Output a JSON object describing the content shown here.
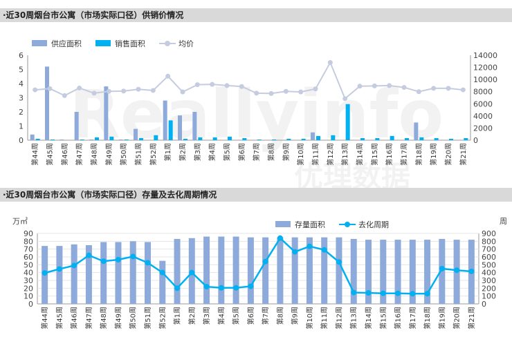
{
  "watermark": {
    "brand": "Reallyinfo",
    "cn": "优理数据"
  },
  "chart_data": [
    {
      "type": "bar",
      "title": "·近30周烟台市公寓（市场实际口径）供销价情况",
      "categories": [
        "第44周",
        "第45周",
        "第46周",
        "第47周",
        "第48周",
        "第49周",
        "第50周",
        "第51周",
        "第52周",
        "第1周",
        "第2周",
        "第3周",
        "第4周",
        "第5周",
        "第6周",
        "第7周",
        "第8周",
        "第9周",
        "第10周",
        "第11周",
        "第12周",
        "第13周",
        "第14周",
        "第15周",
        "第16周",
        "第17周",
        "第18周",
        "第19周",
        "第20周",
        "第21周"
      ],
      "ylim_left": [
        0,
        6
      ],
      "ylim_right": [
        0,
        14000
      ],
      "yticks_left": [
        "0",
        "1",
        "2",
        "3",
        "4",
        "5",
        "6"
      ],
      "yticks_right": [
        "0",
        "2000",
        "4000",
        "6000",
        "8000",
        "10000",
        "12000",
        "14000"
      ],
      "series": [
        {
          "name": "供应面积",
          "axis": "left",
          "kind": "bar",
          "color": "#8eaadb",
          "values": [
            0.4,
            5.2,
            0.05,
            2.0,
            0.05,
            3.8,
            0.05,
            0.8,
            0.0,
            2.8,
            1.75,
            2.0,
            0.0,
            0.0,
            0.0,
            0.0,
            0.0,
            0.0,
            0.0,
            0.55,
            0.0,
            0.0,
            0.0,
            0.0,
            0.0,
            0.0,
            1.25,
            0.0,
            0.0,
            0.0
          ]
        },
        {
          "name": "销售面积",
          "axis": "left",
          "kind": "bar",
          "color": "#00b0f0",
          "values": [
            0.1,
            0.05,
            0.0,
            0.05,
            0.2,
            0.25,
            0.05,
            0.15,
            0.35,
            1.4,
            0.1,
            0.2,
            0.2,
            0.25,
            0.15,
            0.05,
            0.05,
            0.1,
            0.1,
            0.3,
            0.35,
            2.55,
            0.15,
            0.15,
            0.3,
            0.15,
            0.2,
            0.15,
            0.1,
            0.15
          ]
        },
        {
          "name": "均价",
          "axis": "right",
          "kind": "line",
          "color": "#c5cce0",
          "values": [
            8300,
            8500,
            7350,
            8600,
            7750,
            8050,
            8100,
            8400,
            8200,
            10550,
            7950,
            9150,
            9200,
            9000,
            8850,
            7750,
            7700,
            8050,
            7950,
            8450,
            12800,
            6850,
            8900,
            8950,
            9000,
            8700,
            8000,
            8550,
            8550,
            8300
          ]
        }
      ],
      "legend_position": "top-left"
    },
    {
      "type": "bar",
      "title": "·近30周烟台市公寓（市场实际口径）存量及去化周期情况",
      "left_unit": "万㎡",
      "right_unit": "周",
      "categories": [
        "第44周",
        "第45周",
        "第46周",
        "第47周",
        "第48周",
        "第49周",
        "第50周",
        "第51周",
        "第52周",
        "第1周",
        "第2周",
        "第3周",
        "第4周",
        "第5周",
        "第6周",
        "第7周",
        "第8周",
        "第9周",
        "第10周",
        "第11周",
        "第12周",
        "第13周",
        "第14周",
        "第15周",
        "第16周",
        "第17周",
        "第18周",
        "第19周",
        "第20周",
        "第21周"
      ],
      "ylim_left": [
        0,
        90
      ],
      "ylim_right": [
        0,
        900
      ],
      "yticks_left": [
        "0",
        "10",
        "20",
        "30",
        "40",
        "50",
        "60",
        "70",
        "80",
        "90"
      ],
      "yticks_right": [
        "0",
        "100",
        "200",
        "300",
        "400",
        "500",
        "600",
        "700",
        "800",
        "900"
      ],
      "series": [
        {
          "name": "存量面积",
          "axis": "left",
          "kind": "bar",
          "color": "#8eaadb",
          "values": [
            74,
            74,
            76,
            75,
            79,
            79,
            80,
            79,
            55,
            83,
            84,
            86,
            86,
            86,
            85,
            85,
            85,
            85,
            85,
            85,
            85,
            83,
            82,
            82,
            82,
            82,
            82,
            83,
            82,
            82
          ]
        },
        {
          "name": "去化周期",
          "axis": "right",
          "kind": "line",
          "color": "#00b0f0",
          "values": [
            395,
            445,
            490,
            620,
            545,
            565,
            605,
            525,
            400,
            200,
            400,
            220,
            205,
            205,
            225,
            540,
            840,
            665,
            735,
            690,
            535,
            145,
            140,
            135,
            135,
            130,
            130,
            450,
            430,
            415
          ]
        }
      ],
      "legend_position": "top-center"
    }
  ]
}
